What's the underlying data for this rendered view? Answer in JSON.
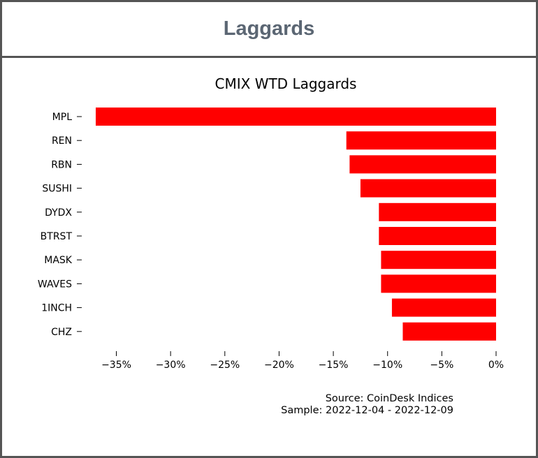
{
  "header": {
    "title": "Laggards"
  },
  "chart_data": {
    "type": "bar",
    "orientation": "horizontal",
    "title": "CMIX WTD Laggards",
    "xlabel": "",
    "ylabel": "",
    "bar_color": "#ff0000",
    "categories": [
      "MPL",
      "REN",
      "RBN",
      "SUSHI",
      "DYDX",
      "BTRST",
      "MASK",
      "WAVES",
      "1INCH",
      "CHZ"
    ],
    "values": [
      -36.9,
      -13.8,
      -13.5,
      -12.5,
      -10.8,
      -10.8,
      -10.6,
      -10.6,
      -9.6,
      -8.6
    ],
    "xlim": [
      -37.5,
      0.3
    ],
    "xticks": [
      {
        "value": -35,
        "label": "−35%"
      },
      {
        "value": -30,
        "label": "−30%"
      },
      {
        "value": -25,
        "label": "−25%"
      },
      {
        "value": -20,
        "label": "−20%"
      },
      {
        "value": -15,
        "label": "−15%"
      },
      {
        "value": -10,
        "label": "−10%"
      },
      {
        "value": -5,
        "label": "−5%"
      },
      {
        "value": 0,
        "label": "0%"
      }
    ],
    "grid": false,
    "notes": [
      "Source: CoinDesk Indices",
      "Sample: 2022-12-04 - 2022-12-09"
    ]
  }
}
